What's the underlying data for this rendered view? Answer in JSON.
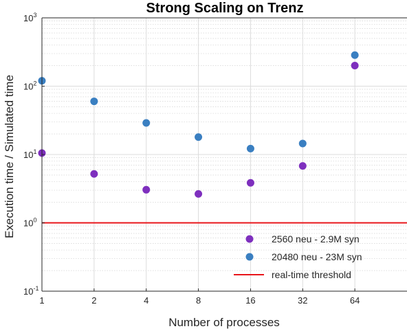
{
  "chart_data": {
    "type": "scatter",
    "title": "Strong Scaling on Trenz",
    "xlabel": "Number of processes",
    "ylabel": "Execution time / Simulated time",
    "x_scale": "log2",
    "y_scale": "log10",
    "x_ticks": [
      1,
      2,
      4,
      8,
      16,
      32,
      64
    ],
    "x_tick_labels": [
      "1",
      "2",
      "4",
      "8",
      "16",
      "32",
      "64"
    ],
    "xlim": [
      1,
      128
    ],
    "ylim": [
      0.1,
      1000
    ],
    "y_ticks": [
      0.1,
      1,
      10,
      100,
      1000
    ],
    "y_tick_labels": [
      {
        "base": "10",
        "exp": "-1"
      },
      {
        "base": "10",
        "exp": "0"
      },
      {
        "base": "10",
        "exp": "1"
      },
      {
        "base": "10",
        "exp": "2"
      },
      {
        "base": "10",
        "exp": "3"
      }
    ],
    "grid": true,
    "legend_position": "bottom-right",
    "series": [
      {
        "name": "2560 neu - 2.9M syn",
        "color": "#7e2fbe",
        "marker": "circle",
        "points": [
          [
            1,
            10.5
          ],
          [
            2,
            5.2
          ],
          [
            4,
            3.05
          ],
          [
            8,
            2.65
          ],
          [
            16,
            3.85
          ],
          [
            32,
            6.8
          ],
          [
            64,
            200
          ]
        ]
      },
      {
        "name": "20480 neu - 23M syn",
        "color": "#3a7fc1",
        "marker": "circle",
        "points": [
          [
            1,
            120
          ],
          [
            2,
            60
          ],
          [
            4,
            29
          ],
          [
            8,
            18
          ],
          [
            16,
            12.2
          ],
          [
            32,
            14.5
          ],
          [
            64,
            285
          ]
        ]
      }
    ],
    "reference_line": {
      "name": "real-time threshold",
      "y": 1,
      "color": "#e8141a"
    }
  }
}
